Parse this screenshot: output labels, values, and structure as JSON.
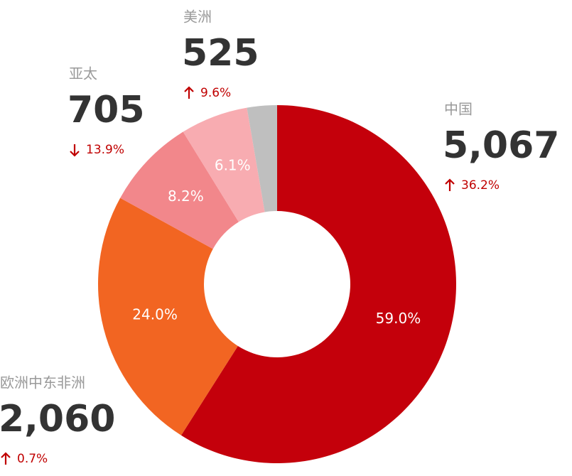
{
  "chart_data": {
    "type": "pie",
    "donut": true,
    "categories": [
      "中国",
      "欧洲中东非洲",
      "亚太",
      "美洲",
      null
    ],
    "values": [
      59.0,
      24.0,
      8.2,
      6.1,
      2.7
    ],
    "value_labels": [
      "59.0%",
      "24.0%",
      "8.2%",
      "6.1%",
      null
    ],
    "colors": [
      "#c4000b",
      "#f26522",
      "#f2878b",
      "#f8acb1",
      "#bfbfbf"
    ],
    "totals": [
      5067,
      2060,
      705,
      525,
      null
    ],
    "total_labels": [
      "5,067",
      "2,060",
      "705",
      "525",
      null
    ],
    "changes": [
      36.2,
      0.7,
      13.9,
      9.6,
      null
    ],
    "change_labels": [
      "36.2%",
      "0.7%",
      "13.9%",
      "9.6%",
      null
    ],
    "change_directions": [
      "up",
      "up",
      "down",
      "up",
      null
    ]
  }
}
